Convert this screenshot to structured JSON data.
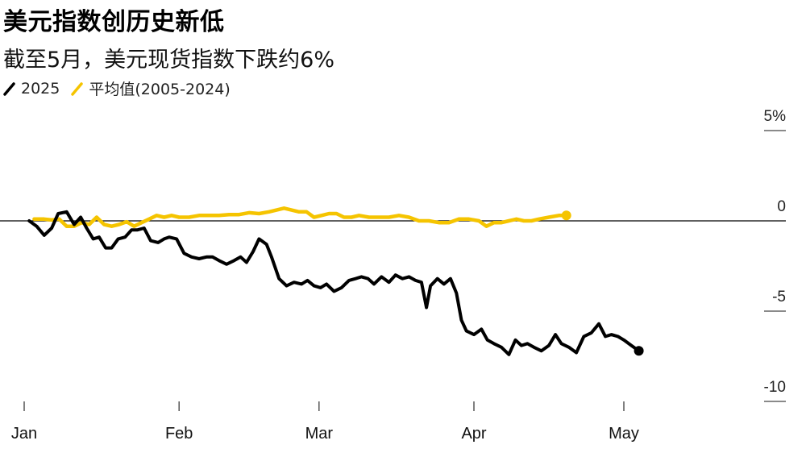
{
  "header": {
    "title": "美元指数创历史新低",
    "subtitle": "截至5月，美元现货指数下跌约6%"
  },
  "legend": [
    {
      "label": "2025",
      "color": "#000000"
    },
    {
      "label": "平均值(2005-2024)",
      "color": "#f5c400"
    }
  ],
  "chart_data": {
    "type": "line",
    "title": "美元指数创历史新低",
    "subtitle": "截至5月，美元现货指数下跌约6%",
    "xlabel": "",
    "ylabel": "",
    "x_unit": "day of year",
    "x_tick_labels": [
      {
        "label": "Jan",
        "day": 1
      },
      {
        "label": "Feb",
        "day": 32
      },
      {
        "label": "Mar",
        "day": 60
      },
      {
        "label": "Apr",
        "day": 91
      },
      {
        "label": "May",
        "day": 121
      }
    ],
    "y_ticks": [
      {
        "label": "5%",
        "value": 5
      },
      {
        "label": "0",
        "value": 0
      },
      {
        "label": "-5",
        "value": -5
      },
      {
        "label": "-10",
        "value": -10
      }
    ],
    "xlim": [
      1,
      151
    ],
    "ylim": [
      -10.3,
      5.5
    ],
    "zero_line": true,
    "grid": false,
    "legend_position": "top-left",
    "series": [
      {
        "name": "2025",
        "color": "#000000",
        "end_marker": true,
        "points": [
          [
            2,
            0
          ],
          [
            3.5,
            -0.3
          ],
          [
            5,
            -0.8
          ],
          [
            6.5,
            -0.4
          ],
          [
            7.8,
            0.4
          ],
          [
            9.5,
            0.5
          ],
          [
            11,
            -0.2
          ],
          [
            12.3,
            0.2
          ],
          [
            13.5,
            -0.4
          ],
          [
            14.8,
            -1.0
          ],
          [
            16,
            -0.9
          ],
          [
            17.3,
            -1.5
          ],
          [
            18.5,
            -1.5
          ],
          [
            19.8,
            -1.0
          ],
          [
            21.2,
            -0.9
          ],
          [
            22.5,
            -0.5
          ],
          [
            23.7,
            -0.5
          ],
          [
            25,
            -0.4
          ],
          [
            26.3,
            -1.1
          ],
          [
            27.8,
            -1.2
          ],
          [
            29,
            -1.0
          ],
          [
            30,
            -0.9
          ],
          [
            31.5,
            -1.0
          ],
          [
            33,
            -1.8
          ],
          [
            34.5,
            -2.0
          ],
          [
            36,
            -2.1
          ],
          [
            37.5,
            -2.0
          ],
          [
            38.7,
            -2.0
          ],
          [
            40,
            -2.2
          ],
          [
            41.5,
            -2.4
          ],
          [
            43,
            -2.2
          ],
          [
            44.3,
            -2.0
          ],
          [
            45.5,
            -2.3
          ],
          [
            46.8,
            -1.7
          ],
          [
            48,
            -1.0
          ],
          [
            49.5,
            -1.3
          ],
          [
            50.5,
            -2.0
          ],
          [
            52,
            -3.2
          ],
          [
            53.5,
            -3.6
          ],
          [
            55,
            -3.4
          ],
          [
            56.5,
            -3.5
          ],
          [
            57.7,
            -3.3
          ],
          [
            59,
            -3.6
          ],
          [
            60.3,
            -3.7
          ],
          [
            61.5,
            -3.5
          ],
          [
            63,
            -3.9
          ],
          [
            64.5,
            -3.7
          ],
          [
            66,
            -3.3
          ],
          [
            67.3,
            -3.2
          ],
          [
            68.5,
            -3.1
          ],
          [
            69.8,
            -3.2
          ],
          [
            71,
            -3.5
          ],
          [
            72.5,
            -3.1
          ],
          [
            74,
            -3.4
          ],
          [
            75.3,
            -3.0
          ],
          [
            76.7,
            -3.2
          ],
          [
            78,
            -3.1
          ],
          [
            79.3,
            -3.3
          ],
          [
            80.5,
            -3.4
          ],
          [
            81.5,
            -4.8
          ],
          [
            82.3,
            -3.6
          ],
          [
            83.7,
            -3.2
          ],
          [
            85,
            -3.5
          ],
          [
            86.3,
            -3.2
          ],
          [
            87.5,
            -4.0
          ],
          [
            88.5,
            -5.5
          ],
          [
            89.5,
            -6.1
          ],
          [
            91,
            -6.3
          ],
          [
            92.5,
            -6.0
          ],
          [
            93.7,
            -6.6
          ],
          [
            95,
            -6.8
          ],
          [
            96.5,
            -7.0
          ],
          [
            98,
            -7.4
          ],
          [
            99.3,
            -6.6
          ],
          [
            100.5,
            -6.9
          ],
          [
            101.7,
            -6.8
          ],
          [
            103,
            -7.0
          ],
          [
            104.5,
            -7.2
          ],
          [
            106,
            -6.9
          ],
          [
            107.3,
            -6.3
          ],
          [
            108.5,
            -6.8
          ],
          [
            110,
            -7.0
          ],
          [
            111.5,
            -7.3
          ],
          [
            113,
            -6.4
          ],
          [
            114.5,
            -6.2
          ],
          [
            116,
            -5.7
          ],
          [
            117.3,
            -6.4
          ],
          [
            118.5,
            -6.3
          ],
          [
            119.8,
            -6.4
          ],
          [
            121,
            -6.6
          ],
          [
            122.5,
            -6.9
          ],
          [
            124,
            -7.2
          ]
        ]
      },
      {
        "name": "平均值(2005-2024)",
        "color": "#f5c400",
        "end_marker": true,
        "points": [
          [
            3,
            0.1
          ],
          [
            5,
            0.1
          ],
          [
            6.5,
            0.05
          ],
          [
            8,
            0.1
          ],
          [
            9.5,
            -0.3
          ],
          [
            11,
            -0.3
          ],
          [
            12.5,
            -0.1
          ],
          [
            14,
            -0.2
          ],
          [
            15.5,
            0.2
          ],
          [
            17,
            -0.2
          ],
          [
            18.5,
            -0.3
          ],
          [
            20,
            -0.2
          ],
          [
            21.5,
            -0.05
          ],
          [
            23,
            -0.3
          ],
          [
            24.5,
            -0.1
          ],
          [
            26,
            0.1
          ],
          [
            27.5,
            0.3
          ],
          [
            29,
            0.2
          ],
          [
            30.5,
            0.3
          ],
          [
            32,
            0.2
          ],
          [
            34,
            0.2
          ],
          [
            36,
            0.3
          ],
          [
            38,
            0.3
          ],
          [
            40,
            0.3
          ],
          [
            42,
            0.35
          ],
          [
            44,
            0.35
          ],
          [
            46,
            0.45
          ],
          [
            48,
            0.4
          ],
          [
            50,
            0.5
          ],
          [
            51.5,
            0.6
          ],
          [
            53,
            0.7
          ],
          [
            54.5,
            0.6
          ],
          [
            56,
            0.5
          ],
          [
            57.5,
            0.5
          ],
          [
            59,
            0.2
          ],
          [
            60.5,
            0.3
          ],
          [
            62,
            0.4
          ],
          [
            63.5,
            0.4
          ],
          [
            65,
            0.2
          ],
          [
            66.5,
            0.2
          ],
          [
            68,
            0.3
          ],
          [
            70,
            0.2
          ],
          [
            72,
            0.2
          ],
          [
            74,
            0.2
          ],
          [
            76,
            0.3
          ],
          [
            78,
            0.2
          ],
          [
            80,
            0.0
          ],
          [
            82,
            0.0
          ],
          [
            84,
            -0.1
          ],
          [
            86,
            -0.1
          ],
          [
            88,
            0.1
          ],
          [
            90,
            0.1
          ],
          [
            92,
            0.0
          ],
          [
            93.5,
            -0.3
          ],
          [
            95,
            -0.1
          ],
          [
            96.5,
            -0.1
          ],
          [
            98,
            0.0
          ],
          [
            99.5,
            0.1
          ],
          [
            101,
            0.0
          ],
          [
            102.5,
            0.0
          ],
          [
            104,
            0.1
          ],
          [
            106,
            0.2
          ],
          [
            108,
            0.3
          ],
          [
            109.5,
            0.3
          ]
        ]
      }
    ]
  }
}
